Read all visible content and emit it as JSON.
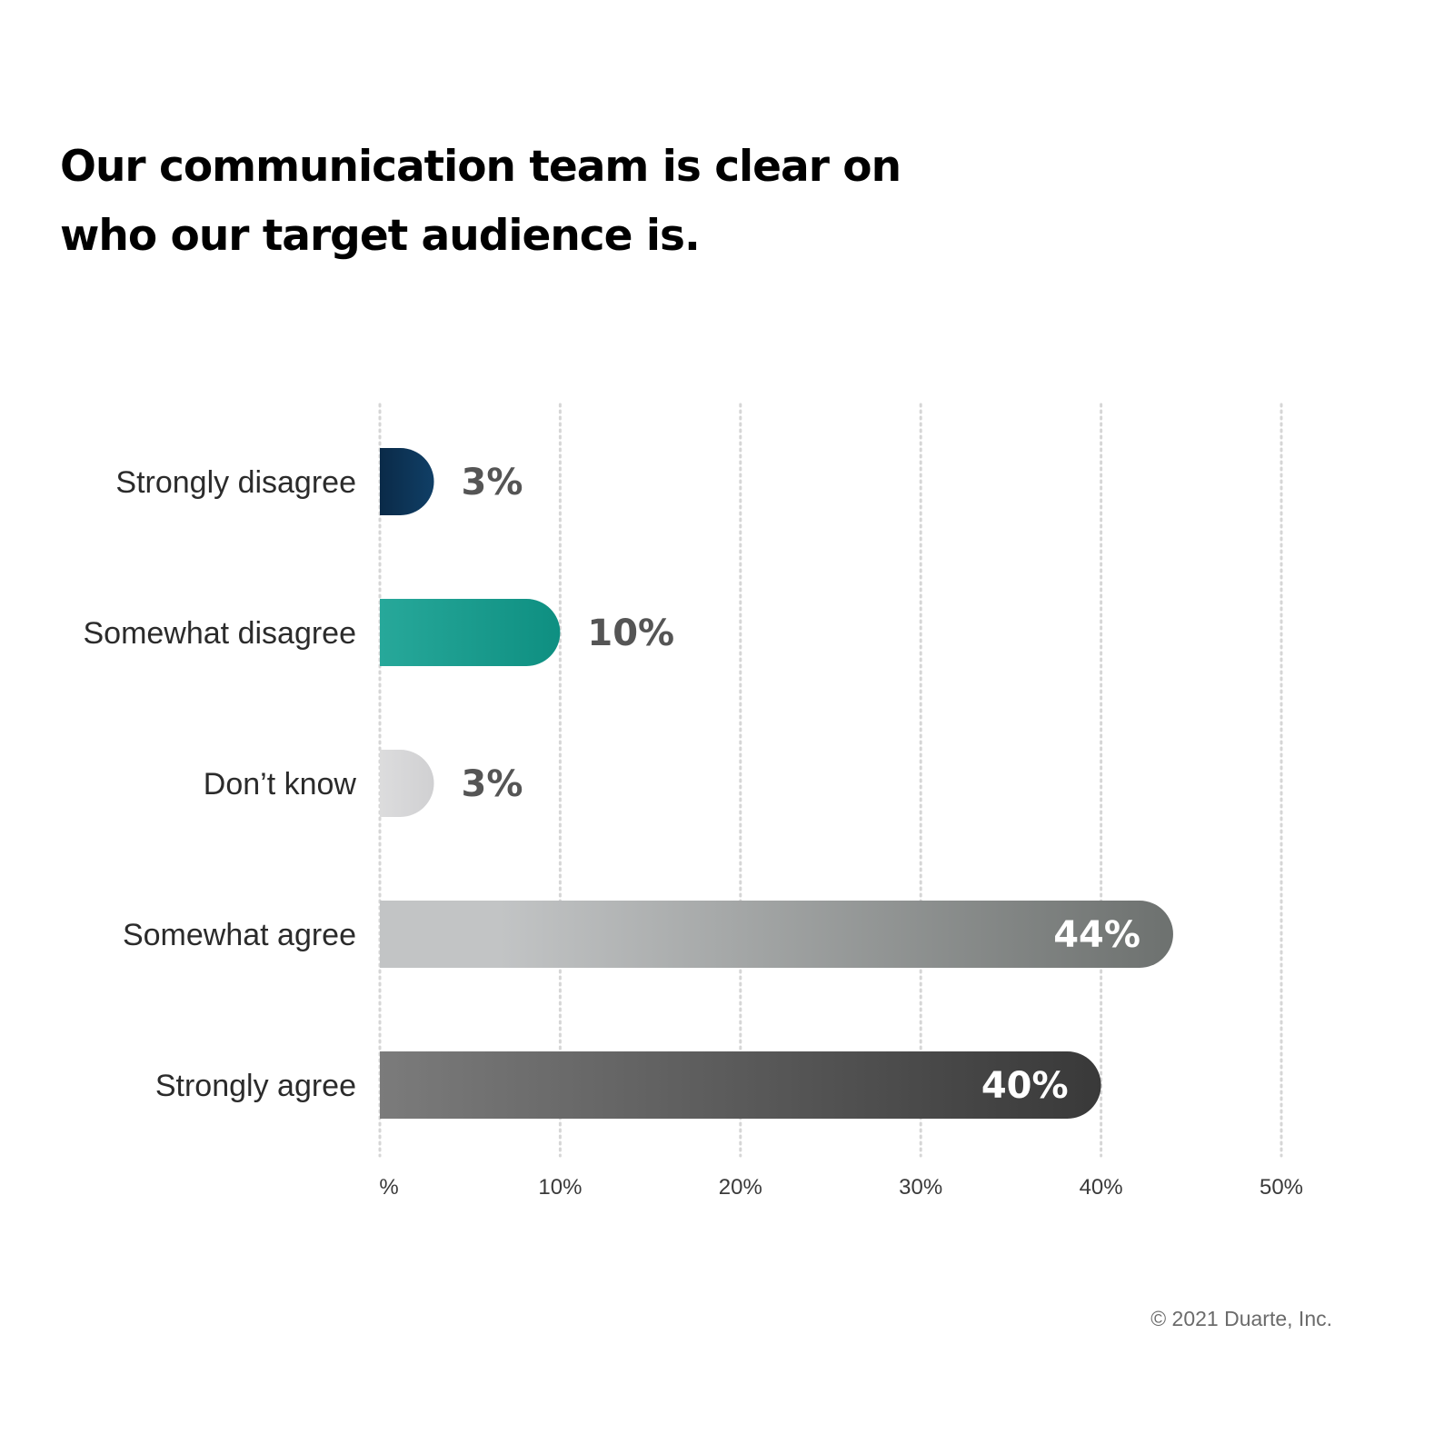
{
  "title_lines": [
    "Our communication team is clear on",
    "who our target audience is."
  ],
  "footer": {
    "copyright": "© 2021 Duarte, Inc."
  },
  "chart_data": {
    "type": "bar",
    "orientation": "horizontal",
    "title": "Our communication team is clear on who our target audience is.",
    "categories": [
      "Strongly disagree",
      "Somewhat disagree",
      "Don’t know",
      "Somewhat agree",
      "Strongly agree"
    ],
    "values": [
      3,
      10,
      3,
      44,
      40
    ],
    "value_labels": [
      "3%",
      "10%",
      "3%",
      "44%",
      "40%"
    ],
    "xlim": [
      0,
      50
    ],
    "x_ticks": [
      0,
      10,
      20,
      30,
      40,
      50
    ],
    "x_tick_labels": [
      "%",
      "10%",
      "20%",
      "30%",
      "40%",
      "50%"
    ],
    "grid": "vertical dotted",
    "bar_colors": [
      [
        "#0a2a48",
        "#103f66"
      ],
      [
        "#27a89a",
        "#0e8f81"
      ],
      [
        "#dcdcdd",
        "#d0d0d2"
      ],
      [
        "#c2c4c5",
        "#6d716f"
      ],
      [
        "#7b7b7b",
        "#393939"
      ]
    ],
    "value_label_colors": [
      "#555555",
      "#555555",
      "#555555",
      "#ffffff",
      "#ffffff"
    ]
  }
}
